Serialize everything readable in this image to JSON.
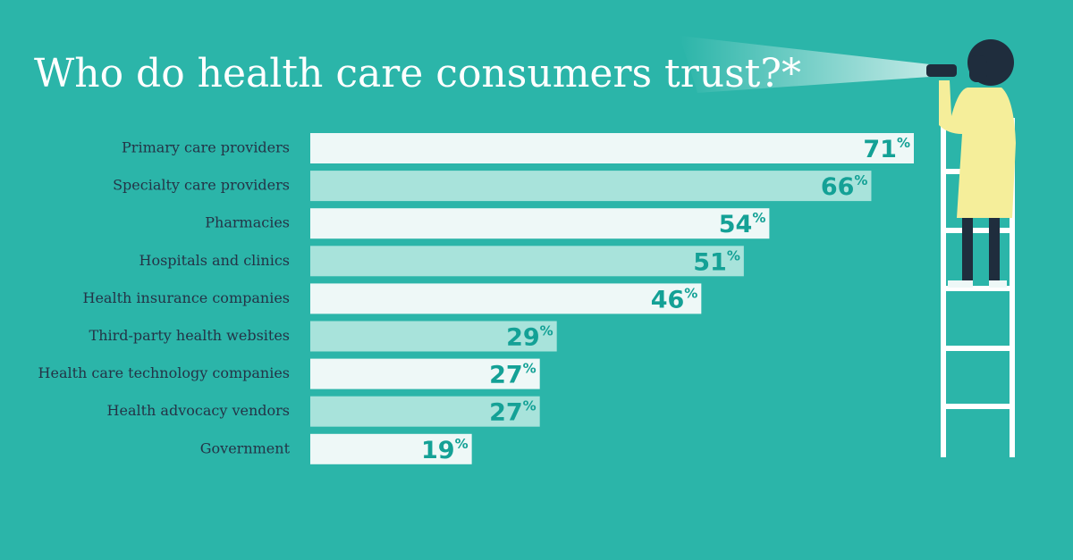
{
  "chart_data": {
    "type": "bar",
    "orientation": "horizontal",
    "title": "Who do health care consumers trust?*",
    "categories": [
      "Primary care providers",
      "Specialty care providers",
      "Pharmacies",
      "Hospitals and clinics",
      "Health insurance companies",
      "Third-party health websites",
      "Health care technology companies",
      "Health advocacy vendors",
      "Government"
    ],
    "values": [
      71,
      66,
      54,
      51,
      46,
      29,
      27,
      27,
      19
    ],
    "value_labels": [
      "71%",
      "66%",
      "54%",
      "51%",
      "46%",
      "29%",
      "27%",
      "27%",
      "19%"
    ],
    "colors": [
      "#eef8f7",
      "#a8e3db",
      "#eef8f7",
      "#a8e3db",
      "#eef8f7",
      "#a8e3db",
      "#eef8f7",
      "#a8e3db",
      "#eef8f7"
    ]
  }
}
